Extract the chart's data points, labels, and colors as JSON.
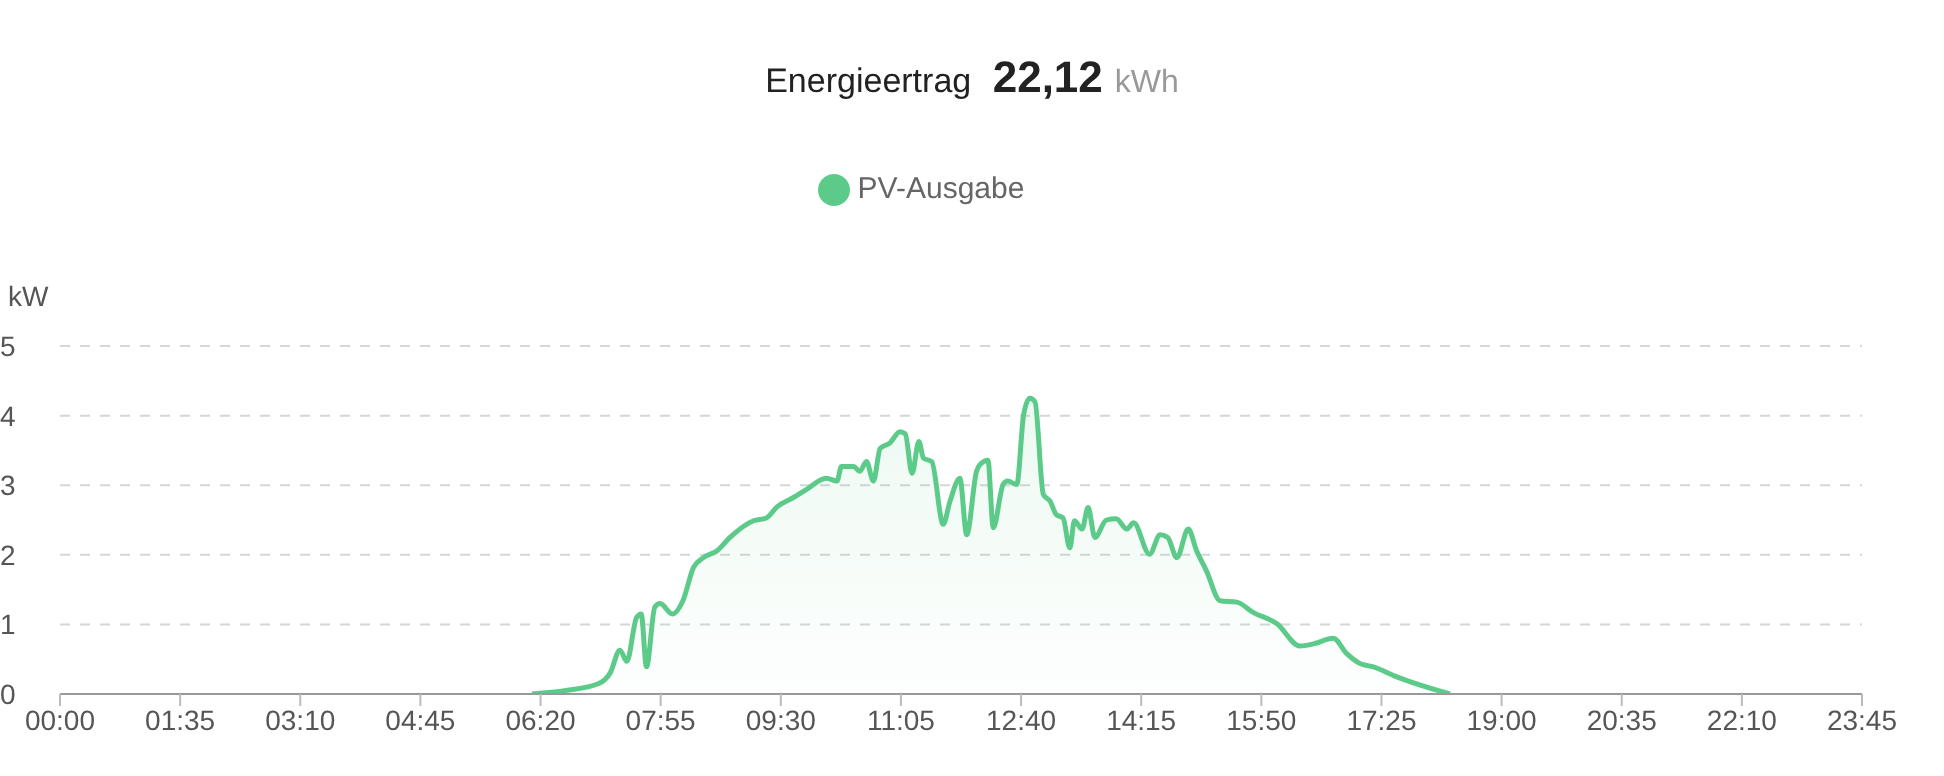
{
  "chart_data": {
    "type": "area",
    "title": "Energieertrag 22,12 kWh",
    "ylabel": "kW",
    "x": [
      6.22,
      6.67,
      7.1,
      7.25,
      7.38,
      7.47,
      7.6,
      7.66,
      7.73,
      7.84,
      7.91,
      8.07,
      8.21,
      8.35,
      8.48,
      8.66,
      8.83,
      9.14,
      9.31,
      9.45,
      9.66,
      9.84,
      10.1,
      10.24,
      10.3,
      10.46,
      10.54,
      10.63,
      10.72,
      10.81,
      10.94,
      11.07,
      11.14,
      11.23,
      11.32,
      11.38,
      11.49,
      11.64,
      11.73,
      11.86,
      11.95,
      12.08,
      12.12,
      12.23,
      12.3,
      12.43,
      12.49,
      12.61,
      12.7,
      12.78,
      12.85,
      12.96,
      13.05,
      13.13,
      13.22,
      13.31,
      13.37,
      13.47,
      13.55,
      13.64,
      13.79,
      13.92,
      14.06,
      14.15,
      14.36,
      14.5,
      14.6,
      14.72,
      14.87,
      14.98,
      15.11,
      15.29,
      15.51,
      15.73,
      16.04,
      16.34,
      16.52,
      16.78,
      16.96,
      17.13,
      17.31,
      17.61,
      18.32
    ],
    "series": [
      {
        "name": "PV-Ausgabe",
        "color": "#5ccb8a",
        "values": [
          0,
          0.05,
          0.15,
          0.3,
          0.63,
          0.47,
          1.1,
          1.15,
          0.39,
          1.25,
          1.3,
          1.15,
          1.34,
          1.82,
          1.96,
          2.06,
          2.25,
          2.49,
          2.53,
          2.69,
          2.82,
          2.94,
          3.1,
          3.06,
          3.27,
          3.27,
          3.2,
          3.34,
          3.06,
          3.53,
          3.61,
          3.77,
          3.74,
          3.17,
          3.63,
          3.39,
          3.34,
          2.44,
          2.77,
          3.1,
          2.29,
          3.2,
          3.29,
          3.36,
          2.39,
          3.01,
          3.06,
          3.01,
          4.01,
          4.25,
          4.2,
          2.87,
          2.77,
          2.58,
          2.53,
          2.1,
          2.49,
          2.37,
          2.68,
          2.25,
          2.5,
          2.52,
          2.37,
          2.46,
          2.01,
          2.29,
          2.25,
          1.96,
          2.37,
          2.06,
          1.77,
          1.34,
          1.32,
          1.17,
          1.01,
          0.69,
          0.72,
          0.8,
          0.58,
          0.44,
          0.39,
          0.25,
          0
        ]
      }
    ],
    "xlim": [
      0,
      23.75
    ],
    "xticks": [
      {
        "value": 0,
        "label": "00:00"
      },
      {
        "value": 1.5833,
        "label": "01:35"
      },
      {
        "value": 3.1667,
        "label": "03:10"
      },
      {
        "value": 4.75,
        "label": "04:45"
      },
      {
        "value": 6.3333,
        "label": "06:20"
      },
      {
        "value": 7.9167,
        "label": "07:55"
      },
      {
        "value": 9.5,
        "label": "09:30"
      },
      {
        "value": 11.0833,
        "label": "11:05"
      },
      {
        "value": 12.6667,
        "label": "12:40"
      },
      {
        "value": 14.25,
        "label": "14:15"
      },
      {
        "value": 15.8333,
        "label": "15:50"
      },
      {
        "value": 17.4167,
        "label": "17:25"
      },
      {
        "value": 19,
        "label": "19:00"
      },
      {
        "value": 20.5833,
        "label": "20:35"
      },
      {
        "value": 22.1667,
        "label": "22:10"
      },
      {
        "value": 23.75,
        "label": "23:45"
      }
    ],
    "ylim": [
      0,
      5
    ],
    "yticks": [
      0,
      1,
      2,
      3,
      4,
      5
    ],
    "grid": "y",
    "legend": "top",
    "marker": "none",
    "line_style": "solid"
  }
}
